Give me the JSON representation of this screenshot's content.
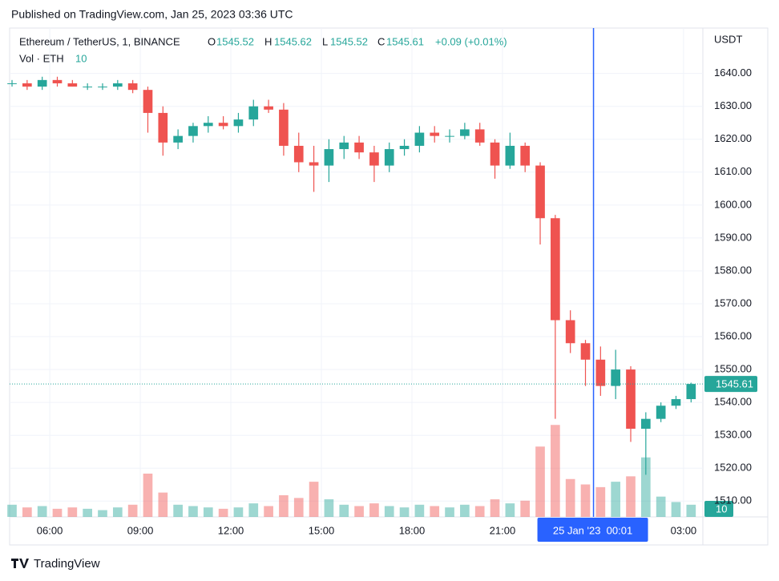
{
  "page": {
    "published": "Published on TradingView.com, Jan 25, 2023 03:36 UTC",
    "brand": "TradingView"
  },
  "legend": {
    "symbol": "Ethereum / TetherUS, 1, BINANCE",
    "open_label": "O",
    "open": 1545.52,
    "high_label": "H",
    "high": 1545.62,
    "low_label": "L",
    "low": 1545.52,
    "close_label": "C",
    "close": 1545.61,
    "change": "+0.09 (+0.01%)",
    "volume_label": "Vol · ETH",
    "volume": 10
  },
  "chart_data": {
    "type": "candlestick",
    "y_axis_label": "USDT",
    "up_color": "#26a69a",
    "down_color": "#ef5350",
    "crosshair_color": "#2962ff",
    "crosshair": {
      "x": 24.0167,
      "label": "25 Jan '23  00:01"
    },
    "xlim": [
      4.67,
      27.64
    ],
    "xticks": [
      {
        "value": 6,
        "label": "06:00"
      },
      {
        "value": 9,
        "label": "09:00"
      },
      {
        "value": 12,
        "label": "12:00"
      },
      {
        "value": 15,
        "label": "15:00"
      },
      {
        "value": 18,
        "label": "18:00"
      },
      {
        "value": 21,
        "label": "21:00"
      },
      {
        "value": 27,
        "label": "03:00"
      }
    ],
    "ylim": [
      1505.2,
      1653.8
    ],
    "yticks": [
      {
        "value": 1510,
        "label": "1510.00"
      },
      {
        "value": 1520,
        "label": "1520.00"
      },
      {
        "value": 1530,
        "label": "1530.00"
      },
      {
        "value": 1540,
        "label": "1540.00"
      },
      {
        "value": 1550,
        "label": "1550.00"
      },
      {
        "value": 1560,
        "label": "1560.00"
      },
      {
        "value": 1570,
        "label": "1570.00"
      },
      {
        "value": 1580,
        "label": "1580.00"
      },
      {
        "value": 1590,
        "label": "1590.00"
      },
      {
        "value": 1600,
        "label": "1600.00"
      },
      {
        "value": 1610,
        "label": "1610.00"
      },
      {
        "value": 1620,
        "label": "1620.00"
      },
      {
        "value": 1630,
        "label": "1630.00"
      },
      {
        "value": 1640,
        "label": "1640.00"
      }
    ],
    "grid": true,
    "vlim": [
      0,
      8000
    ],
    "x": [
      4.75,
      5.25,
      5.75,
      6.25,
      6.75,
      7.25,
      7.75,
      8.25,
      8.75,
      9.25,
      9.75,
      10.25,
      10.75,
      11.25,
      11.75,
      12.25,
      12.75,
      13.25,
      13.75,
      14.25,
      14.75,
      15.25,
      15.75,
      16.25,
      16.75,
      17.25,
      17.75,
      18.25,
      18.75,
      19.25,
      19.75,
      20.25,
      20.75,
      21.25,
      21.75,
      22.25,
      22.75,
      23.25,
      23.75,
      24.25,
      24.75,
      25.25,
      25.75,
      26.25,
      26.75,
      27.25
    ],
    "open": [
      1637,
      1637,
      1636,
      1638,
      1637,
      1636,
      1636,
      1636,
      1637,
      1635,
      1628,
      1619,
      1621,
      1624,
      1625,
      1624,
      1626,
      1630,
      1629,
      1618,
      1613,
      1612,
      1617,
      1619,
      1616,
      1612,
      1617,
      1618,
      1622,
      1621,
      1621,
      1623,
      1619,
      1612,
      1618,
      1612,
      1596,
      1565,
      1558,
      1553,
      1545,
      1550,
      1532,
      1535,
      1539,
      1541
    ],
    "high": [
      1638,
      1638,
      1639,
      1639,
      1638,
      1637,
      1637,
      1638,
      1638,
      1636,
      1630,
      1623,
      1625,
      1627,
      1627,
      1628,
      1632,
      1632,
      1631,
      1622,
      1618,
      1620,
      1621,
      1621,
      1618,
      1619,
      1620,
      1624,
      1624,
      1623,
      1625,
      1625,
      1620,
      1622,
      1619,
      1613,
      1597,
      1568,
      1559,
      1557,
      1556,
      1551,
      1537,
      1540,
      1542,
      1546
    ],
    "low": [
      1636,
      1635,
      1635,
      1636,
      1636,
      1635,
      1635,
      1635,
      1634,
      1622,
      1615,
      1617,
      1619,
      1622,
      1623,
      1622,
      1624,
      1628,
      1615,
      1610,
      1604,
      1607,
      1614,
      1614,
      1607,
      1610,
      1615,
      1616,
      1619,
      1619,
      1620,
      1618,
      1608,
      1611,
      1610,
      1588,
      1535,
      1555,
      1545,
      1542,
      1541,
      1528,
      1518,
      1534,
      1538,
      1540
    ],
    "close": [
      1637,
      1636,
      1638,
      1637,
      1636,
      1636,
      1636,
      1637,
      1635,
      1628,
      1619,
      1621,
      1624,
      1625,
      1624,
      1626,
      1630,
      1629,
      1618,
      1613,
      1612,
      1617,
      1619,
      1616,
      1612,
      1617,
      1618,
      1622,
      1621,
      1621,
      1623,
      1619,
      1612,
      1618,
      1612,
      1596,
      1565,
      1558,
      1553,
      1545,
      1550,
      1532,
      1535,
      1539,
      1541,
      1545.61
    ],
    "volume": [
      900,
      700,
      800,
      600,
      700,
      600,
      500,
      700,
      900,
      3200,
      1800,
      900,
      800,
      700,
      600,
      700,
      1000,
      800,
      1600,
      1400,
      2600,
      1300,
      900,
      800,
      1000,
      800,
      700,
      900,
      800,
      700,
      900,
      800,
      1300,
      1000,
      1200,
      5200,
      6800,
      2800,
      2400,
      2200,
      2600,
      3000,
      4400,
      1500,
      1100,
      900
    ]
  }
}
